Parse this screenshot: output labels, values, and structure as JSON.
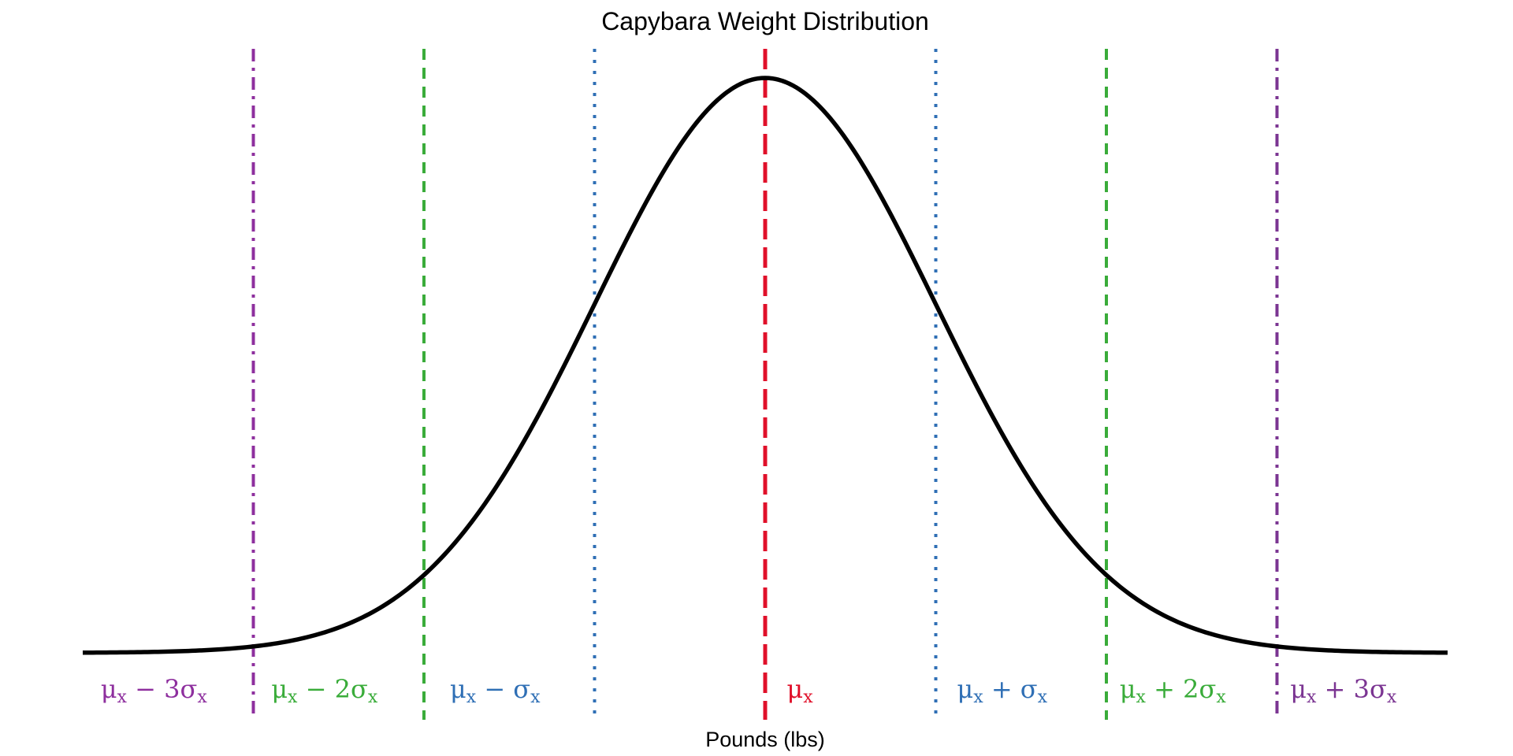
{
  "chart_data": {
    "type": "line",
    "title": "Capybara Weight Distribution",
    "xlabel": "Pounds (lbs)",
    "ylabel": "",
    "grid": false,
    "axes_visible": false,
    "curve": {
      "distribution": "normal",
      "mean": 0,
      "sd": 1,
      "xlim": [
        -4,
        4
      ],
      "color": "#000000"
    },
    "reference_lines": [
      {
        "x": -3,
        "label_parts": [
          "μ",
          "x",
          " − 3σ",
          "x"
        ],
        "color": "#8e2f9e",
        "style": "dashdot"
      },
      {
        "x": -2,
        "label_parts": [
          "μ",
          "x",
          " − 2σ",
          "x"
        ],
        "color": "#3aac3a",
        "style": "dashed"
      },
      {
        "x": -1,
        "label_parts": [
          "μ",
          "x",
          " − σ",
          "x"
        ],
        "color": "#2f6fb5",
        "style": "dotted"
      },
      {
        "x": 0,
        "label_parts": [
          "μ",
          "x",
          "",
          ""
        ],
        "color": "#e0102a",
        "style": "longdash"
      },
      {
        "x": 1,
        "label_parts": [
          "μ",
          "x",
          " + σ",
          "x"
        ],
        "color": "#2f6fb5",
        "style": "dotted"
      },
      {
        "x": 2,
        "label_parts": [
          "μ",
          "x",
          " + 2σ",
          "x"
        ],
        "color": "#3aac3a",
        "style": "dashed"
      },
      {
        "x": 3,
        "label_parts": [
          "μ",
          "x",
          " + 3σ",
          "x"
        ],
        "color": "#7b3592",
        "style": "dashdot"
      }
    ]
  }
}
